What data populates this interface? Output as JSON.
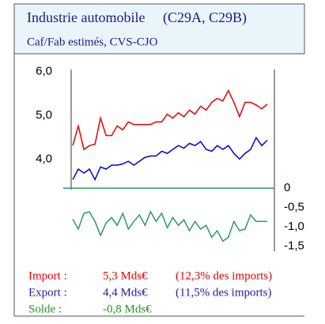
{
  "chart_data": {
    "type": "line",
    "title": "Industrie automobile     (C29A, C29B)",
    "subtitle": "Caf/Fab estimés, CVS-CJO",
    "categories": [
      null,
      null,
      null,
      null,
      null,
      null,
      null,
      null,
      null,
      null,
      null,
      null,
      null,
      null,
      null,
      null,
      null,
      null,
      null,
      null,
      null,
      null,
      null,
      null,
      null,
      null,
      null,
      null,
      null,
      null,
      null,
      null,
      null,
      null,
      null,
      null
    ],
    "series": [
      {
        "color": "#e80000",
        "values": [
          4.31,
          4.76,
          4.22,
          4.31,
          4.34,
          4.94,
          4.54,
          4.54,
          4.76,
          4.67,
          4.85,
          4.79,
          4.79,
          4.79,
          4.79,
          4.85,
          4.85,
          5.03,
          4.94,
          5.06,
          4.97,
          5.12,
          5.03,
          5.21,
          5.12,
          5.3,
          5.39,
          5.33,
          5.57,
          5.3,
          4.97,
          5.3,
          5.3,
          5.24,
          5.15,
          5.26
        ]
      },
      {
        "color": "#0000e0",
        "values": [
          3.53,
          3.77,
          3.68,
          3.77,
          3.53,
          3.82,
          3.77,
          3.86,
          3.86,
          3.89,
          3.95,
          3.86,
          3.95,
          4.04,
          4.07,
          4.07,
          4.18,
          4.13,
          4.22,
          4.31,
          4.25,
          4.36,
          4.31,
          4.4,
          4.22,
          4.18,
          4.31,
          4.22,
          4.31,
          4.13,
          4.0,
          4.13,
          4.22,
          4.49,
          4.31,
          4.43
        ]
      },
      {
        "color": "#2e9a5c",
        "axis": "y2",
        "values": [
          -0.8,
          -1.06,
          -0.65,
          -0.61,
          -0.86,
          -1.22,
          -0.9,
          -0.76,
          -0.96,
          -0.65,
          -1.06,
          -0.86,
          -0.69,
          -0.96,
          -0.61,
          -0.86,
          -0.65,
          -1.02,
          -0.76,
          -0.96,
          -0.82,
          -1.1,
          -0.86,
          -1.06,
          -0.96,
          -1.27,
          -1.1,
          -1.37,
          -1.27,
          -0.86,
          -1.1,
          -1.06,
          -0.69,
          -0.86,
          -0.86,
          -0.86
        ]
      }
    ],
    "ylim": [
      3.3,
      6.05
    ],
    "yticks": [
      {
        "value": 6,
        "label": "6,0"
      },
      {
        "value": 5,
        "label": "5,0"
      },
      {
        "value": 4,
        "label": "4,0"
      }
    ],
    "y2lim": [
      -1.63,
      3.06
    ],
    "y2ticks": [
      0,
      {
        "value": -0.5,
        "label": "-0,5"
      },
      {
        "value": -1,
        "label": "-1,0"
      },
      {
        "value": -1.5,
        "label": "-1,5"
      }
    ],
    "y2_zero_line": true,
    "summary": [
      {
        "label": "Import :",
        "value": "5,3 Mds€",
        "share": "(12,3% des imports)",
        "color": "#e80000"
      },
      {
        "label": "Export :",
        "value": "4,4 Mds€",
        "share": "(11,5% des imports)",
        "color": "#2020a0"
      },
      {
        "label": "Solde :",
        "value": "-0,8 Mds€",
        "color": "#1a9a1a"
      }
    ]
  }
}
